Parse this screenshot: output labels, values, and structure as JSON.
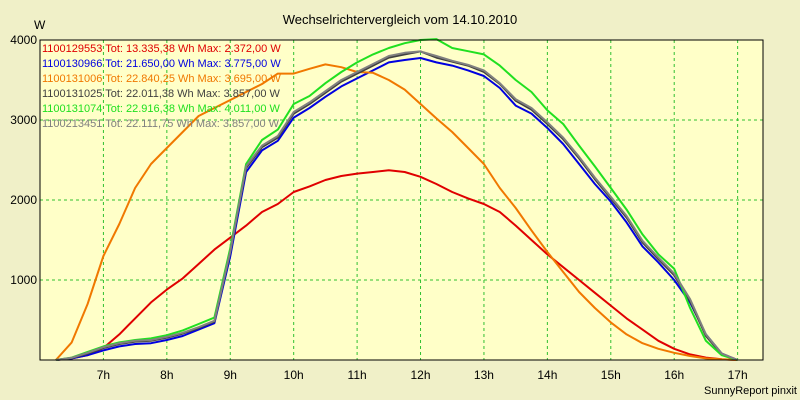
{
  "chart_data": {
    "type": "line",
    "title": "Wechselrichtervergleich vom 14.10.2010",
    "ylabel": "W",
    "ylim": [
      0,
      4000
    ],
    "y_ticks": [
      1000,
      2000,
      3000,
      4000
    ],
    "xlim": [
      6.0,
      17.4
    ],
    "x_ticks": [
      7,
      8,
      9,
      10,
      11,
      12,
      13,
      14,
      15,
      16,
      17
    ],
    "x_tick_suffix": "h",
    "grid": true,
    "footer": "SunnyReport pinxit",
    "series": [
      {
        "name": "1100129553",
        "legend": "1100129553 Tot: 13.335,38 Wh Max: 2.372,00 W",
        "color": "#e00000",
        "x": [
          6.25,
          6.5,
          6.75,
          7.0,
          7.25,
          7.5,
          7.75,
          8.0,
          8.25,
          8.5,
          8.75,
          9.0,
          9.25,
          9.5,
          9.75,
          10.0,
          10.25,
          10.5,
          10.75,
          11.0,
          11.25,
          11.5,
          11.75,
          12.0,
          12.25,
          12.5,
          12.75,
          13.0,
          13.25,
          13.5,
          13.75,
          14.0,
          14.25,
          14.5,
          14.75,
          15.0,
          15.25,
          15.5,
          15.75,
          16.0,
          16.25,
          16.5,
          16.75,
          17.0
        ],
        "y": [
          0,
          20,
          60,
          150,
          320,
          520,
          720,
          880,
          1020,
          1200,
          1380,
          1530,
          1680,
          1850,
          1950,
          2100,
          2170,
          2250,
          2300,
          2330,
          2350,
          2372,
          2350,
          2290,
          2200,
          2100,
          2020,
          1950,
          1850,
          1680,
          1500,
          1320,
          1160,
          1000,
          840,
          680,
          520,
          380,
          240,
          140,
          70,
          30,
          10,
          0
        ]
      },
      {
        "name": "1100130966",
        "legend": "1100130966 Tot: 21.650,00 Wh Max: 3.775,00 W",
        "color": "#0000e0",
        "x": [
          6.25,
          6.5,
          6.75,
          7.0,
          7.25,
          7.5,
          7.75,
          8.0,
          8.25,
          8.5,
          8.75,
          9.0,
          9.25,
          9.5,
          9.75,
          10.0,
          10.25,
          10.5,
          10.75,
          11.0,
          11.25,
          11.5,
          11.75,
          12.0,
          12.25,
          12.5,
          12.75,
          13.0,
          13.25,
          13.5,
          13.75,
          14.0,
          14.25,
          14.5,
          14.75,
          15.0,
          15.25,
          15.5,
          15.75,
          16.0,
          16.25,
          16.5,
          16.75,
          17.0
        ],
        "y": [
          0,
          20,
          60,
          120,
          170,
          200,
          210,
          250,
          300,
          380,
          460,
          1300,
          2350,
          2620,
          2740,
          3030,
          3150,
          3290,
          3420,
          3520,
          3620,
          3720,
          3750,
          3775,
          3720,
          3680,
          3620,
          3550,
          3400,
          3180,
          3080,
          2900,
          2700,
          2450,
          2200,
          1980,
          1720,
          1420,
          1220,
          1000,
          720,
          320,
          80,
          0
        ]
      },
      {
        "name": "1100131006",
        "legend": "1100131006 Tot: 22.840,25 Wh Max: 3.695,00 W",
        "color": "#f07800",
        "x": [
          6.25,
          6.5,
          6.75,
          7.0,
          7.25,
          7.5,
          7.75,
          8.0,
          8.25,
          8.5,
          8.75,
          9.0,
          9.25,
          9.5,
          9.75,
          10.0,
          10.25,
          10.5,
          10.75,
          11.0,
          11.25,
          11.5,
          11.75,
          12.0,
          12.25,
          12.5,
          12.75,
          13.0,
          13.25,
          13.5,
          13.75,
          14.0,
          14.25,
          14.5,
          14.75,
          15.0,
          15.25,
          15.5,
          15.75,
          16.0,
          16.25,
          16.5,
          16.75,
          17.0
        ],
        "y": [
          0,
          220,
          700,
          1300,
          1700,
          2150,
          2450,
          2650,
          2850,
          3050,
          3150,
          3250,
          3350,
          3450,
          3580,
          3580,
          3640,
          3695,
          3660,
          3600,
          3590,
          3500,
          3380,
          3200,
          3020,
          2850,
          2650,
          2450,
          2150,
          1900,
          1620,
          1350,
          1100,
          850,
          650,
          470,
          320,
          210,
          140,
          90,
          50,
          20,
          8,
          0
        ]
      },
      {
        "name": "1100131025",
        "legend": "1100131025 Tot: 22.011,38 Wh Max: 3.857,00 W",
        "color": "#404040",
        "x": [
          6.25,
          6.5,
          6.75,
          7.0,
          7.25,
          7.5,
          7.75,
          8.0,
          8.25,
          8.5,
          8.75,
          9.0,
          9.25,
          9.5,
          9.75,
          10.0,
          10.25,
          10.5,
          10.75,
          11.0,
          11.25,
          11.5,
          11.75,
          12.0,
          12.25,
          12.5,
          12.75,
          13.0,
          13.25,
          13.5,
          13.75,
          14.0,
          14.25,
          14.5,
          14.75,
          15.0,
          15.25,
          15.5,
          15.75,
          16.0,
          16.25,
          16.5,
          16.75,
          17.0
        ],
        "y": [
          0,
          25,
          80,
          150,
          200,
          230,
          240,
          280,
          330,
          400,
          480,
          1350,
          2400,
          2660,
          2780,
          3080,
          3200,
          3340,
          3480,
          3580,
          3680,
          3780,
          3820,
          3857,
          3780,
          3730,
          3680,
          3600,
          3450,
          3240,
          3130,
          2950,
          2760,
          2520,
          2260,
          2020,
          1780,
          1470,
          1260,
          1060,
          740,
          300,
          70,
          0
        ]
      },
      {
        "name": "1100131074",
        "legend": "1100131074 Tot: 22.916,38 Wh Max: 4.011,00 W",
        "color": "#20e020",
        "x": [
          6.25,
          6.5,
          6.75,
          7.0,
          7.25,
          7.5,
          7.75,
          8.0,
          8.25,
          8.5,
          8.75,
          9.0,
          9.25,
          9.5,
          9.75,
          10.0,
          10.25,
          10.5,
          10.75,
          11.0,
          11.25,
          11.5,
          11.75,
          12.0,
          12.25,
          12.5,
          12.75,
          13.0,
          13.25,
          13.5,
          13.75,
          14.0,
          14.25,
          14.5,
          14.75,
          15.0,
          15.25,
          15.5,
          15.75,
          16.0,
          16.25,
          16.5,
          16.75,
          17.0
        ],
        "y": [
          0,
          30,
          100,
          170,
          220,
          250,
          270,
          310,
          370,
          450,
          530,
          1400,
          2450,
          2750,
          2880,
          3200,
          3300,
          3460,
          3600,
          3720,
          3820,
          3900,
          3960,
          4000,
          4011,
          3900,
          3860,
          3820,
          3680,
          3500,
          3350,
          3120,
          2950,
          2680,
          2420,
          2150,
          1880,
          1570,
          1320,
          1140,
          650,
          240,
          60,
          0
        ]
      },
      {
        "name": "1100213451",
        "legend": "1100213451 Tot: 22.111,75 Wh Max: 3.857,00 W",
        "color": "#808080",
        "x": [
          6.25,
          6.5,
          6.75,
          7.0,
          7.25,
          7.5,
          7.75,
          8.0,
          8.25,
          8.5,
          8.75,
          9.0,
          9.25,
          9.5,
          9.75,
          10.0,
          10.25,
          10.5,
          10.75,
          11.0,
          11.25,
          11.5,
          11.75,
          12.0,
          12.25,
          12.5,
          12.75,
          13.0,
          13.25,
          13.5,
          13.75,
          14.0,
          14.25,
          14.5,
          14.75,
          15.0,
          15.25,
          15.5,
          15.75,
          16.0,
          16.25,
          16.5,
          16.75,
          17.0
        ],
        "y": [
          0,
          28,
          90,
          160,
          210,
          240,
          250,
          290,
          340,
          410,
          490,
          1360,
          2420,
          2680,
          2800,
          3100,
          3220,
          3360,
          3500,
          3600,
          3700,
          3800,
          3840,
          3857,
          3800,
          3740,
          3690,
          3620,
          3460,
          3260,
          3150,
          2970,
          2780,
          2540,
          2280,
          2040,
          1800,
          1490,
          1280,
          1080,
          760,
          320,
          80,
          0
        ]
      }
    ]
  }
}
